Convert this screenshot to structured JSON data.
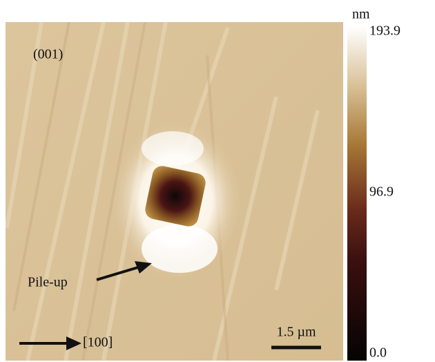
{
  "image": {
    "orientation_label": "(001)",
    "annotation": "Pile-up",
    "direction_label": "[100]",
    "scale_bar": "1.5 µm"
  },
  "colorbar": {
    "unit": "nm",
    "lim": [
      0,
      193.9
    ],
    "ticks": [
      {
        "value": 0,
        "label": "0.0"
      },
      {
        "value": 96.9,
        "label": "96.9"
      },
      {
        "value": 193.9,
        "label": "193.9"
      }
    ]
  }
}
